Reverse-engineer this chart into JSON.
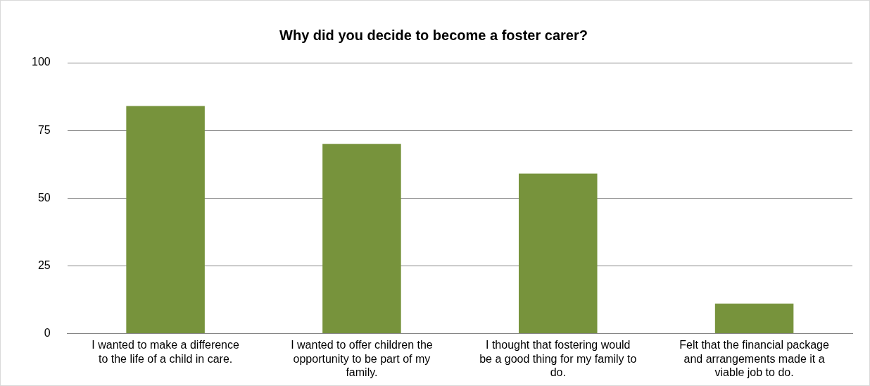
{
  "chart_data": {
    "type": "bar",
    "title": "Why did you decide to become a foster carer?",
    "categories": [
      "I wanted to make a difference to the life of a child in care.",
      "I wanted to offer children the opportunity to be part of my family.",
      "I thought that fostering would be a good thing for my family to do.",
      "Felt that the financial package and arrangements made it a viable job to do."
    ],
    "values": [
      84,
      70,
      59,
      11
    ],
    "color": "#77933c",
    "ylim": [
      0,
      100
    ],
    "yticks": [
      0,
      25,
      50,
      75,
      100
    ],
    "grid": "y",
    "legend": false
  }
}
